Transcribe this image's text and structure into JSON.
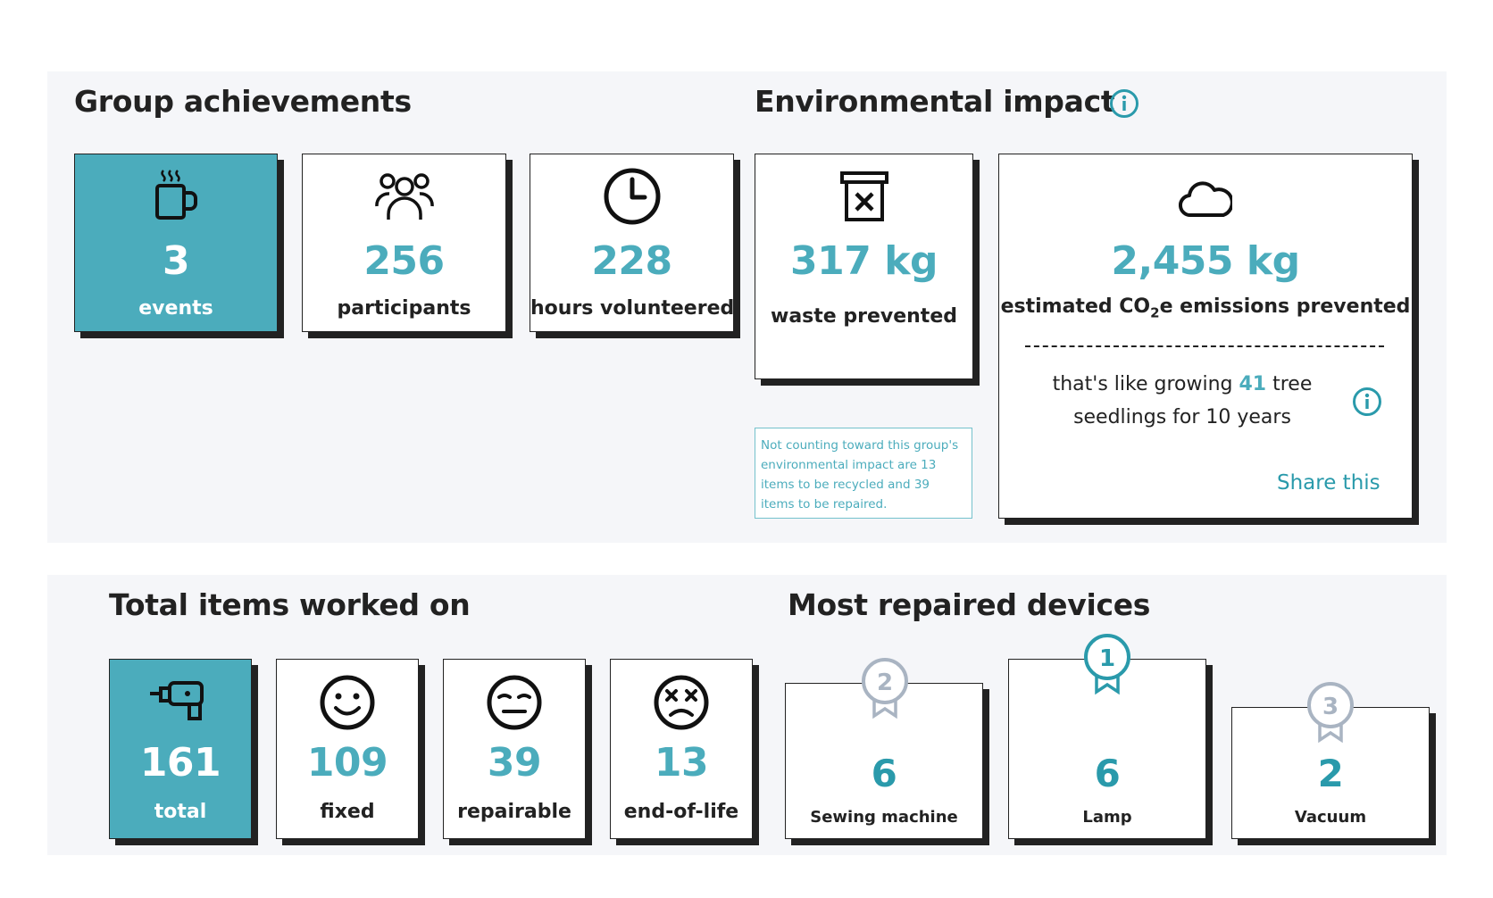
{
  "group_achievements": {
    "title": "Group achievements",
    "stats": [
      {
        "value": "3",
        "label": "events",
        "icon": "coffee-cup-icon"
      },
      {
        "value": "256",
        "label": "participants",
        "icon": "people-icon"
      },
      {
        "value": "228",
        "label": "hours volunteered",
        "icon": "clock-icon"
      }
    ]
  },
  "environmental_impact": {
    "title": "Environmental impact",
    "waste": {
      "value": "317 kg",
      "label": "waste prevented",
      "icon": "bin-icon"
    },
    "co2": {
      "value": "2,455 kg",
      "label_prefix": "estimated CO",
      "label_sub": "2",
      "label_suffix": "e emissions prevented",
      "icon": "cloud-icon",
      "like_prefix": "that's like growing ",
      "like_count": "41",
      "like_suffix": " tree seedlings for 10 years",
      "share_label": "Share this"
    },
    "note": "Not counting toward this group's environmental impact are 13 items to be recycled and 39 items to be repaired."
  },
  "items": {
    "title": "Total items worked on",
    "stats": [
      {
        "value": "161",
        "label": "total",
        "icon": "drill-icon"
      },
      {
        "value": "109",
        "label": "fixed",
        "icon": "smile-icon"
      },
      {
        "value": "39",
        "label": "repairable",
        "icon": "neutral-face-icon"
      },
      {
        "value": "13",
        "label": "end-of-life",
        "icon": "dead-face-icon"
      }
    ]
  },
  "devices": {
    "title": "Most repaired devices",
    "list": [
      {
        "rank": "2",
        "count": "6",
        "name": "Sewing machine"
      },
      {
        "rank": "1",
        "count": "6",
        "name": "Lamp"
      },
      {
        "rank": "3",
        "count": "2",
        "name": "Vacuum"
      }
    ]
  },
  "colors": {
    "accent": "#4bacbc",
    "border": "#222222",
    "panel": "#f5f6f9",
    "medal_gold": "#2a9aab",
    "medal_grey": "#a9b4c2"
  }
}
